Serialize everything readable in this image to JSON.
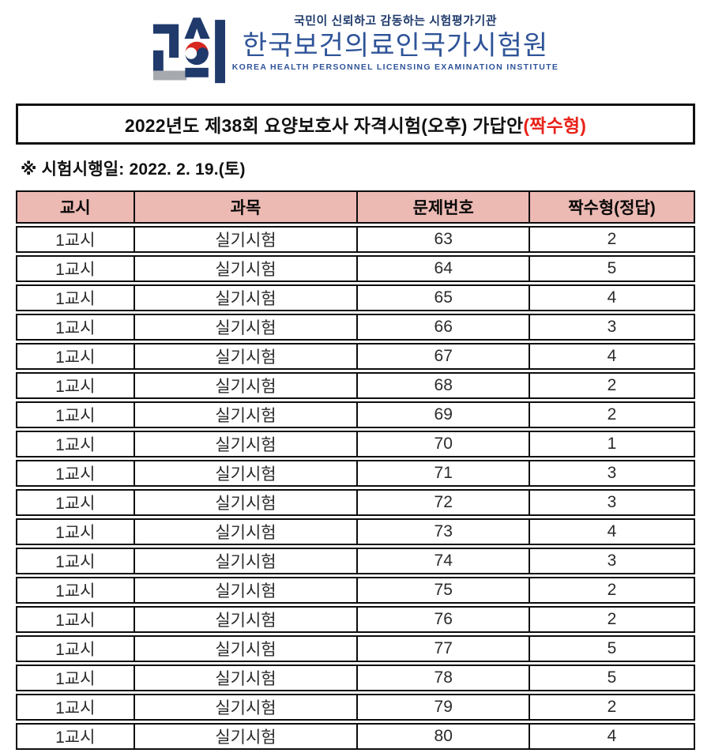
{
  "colors": {
    "navy": "#1f3a6b",
    "blue": "#2f5498",
    "logo_red": "#d7281f",
    "logo_gray": "#a6aaaf",
    "accent_red": "#e8231b",
    "header_pink": "#ecb9b3"
  },
  "logo": {
    "tagline": "국민이 신뢰하고 감동하는 시험평가기관",
    "org_name_ko": "한국보건의료인국가시험원",
    "org_name_en": "KOREA HEALTH PERSONNEL LICENSING EXAMINATION INSTITUTE"
  },
  "title": {
    "main": "2022년도 제38회 요양보호사 자격시험(오후) 가답안",
    "highlight": "(짝수형)"
  },
  "exam_date_note": "※ 시험시행일: 2022. 2. 19.(토)",
  "table": {
    "columns": [
      "교시",
      "과목",
      "문제번호",
      "짝수형(정답)"
    ],
    "rows": [
      {
        "session": "1교시",
        "subject": "실기시험",
        "question": "63",
        "answer": "2"
      },
      {
        "session": "1교시",
        "subject": "실기시험",
        "question": "64",
        "answer": "5"
      },
      {
        "session": "1교시",
        "subject": "실기시험",
        "question": "65",
        "answer": "4"
      },
      {
        "session": "1교시",
        "subject": "실기시험",
        "question": "66",
        "answer": "3"
      },
      {
        "session": "1교시",
        "subject": "실기시험",
        "question": "67",
        "answer": "4"
      },
      {
        "session": "1교시",
        "subject": "실기시험",
        "question": "68",
        "answer": "2"
      },
      {
        "session": "1교시",
        "subject": "실기시험",
        "question": "69",
        "answer": "2"
      },
      {
        "session": "1교시",
        "subject": "실기시험",
        "question": "70",
        "answer": "1"
      },
      {
        "session": "1교시",
        "subject": "실기시험",
        "question": "71",
        "answer": "3"
      },
      {
        "session": "1교시",
        "subject": "실기시험",
        "question": "72",
        "answer": "3"
      },
      {
        "session": "1교시",
        "subject": "실기시험",
        "question": "73",
        "answer": "4"
      },
      {
        "session": "1교시",
        "subject": "실기시험",
        "question": "74",
        "answer": "3"
      },
      {
        "session": "1교시",
        "subject": "실기시험",
        "question": "75",
        "answer": "2"
      },
      {
        "session": "1교시",
        "subject": "실기시험",
        "question": "76",
        "answer": "2"
      },
      {
        "session": "1교시",
        "subject": "실기시험",
        "question": "77",
        "answer": "5"
      },
      {
        "session": "1교시",
        "subject": "실기시험",
        "question": "78",
        "answer": "5"
      },
      {
        "session": "1교시",
        "subject": "실기시험",
        "question": "79",
        "answer": "2"
      },
      {
        "session": "1교시",
        "subject": "실기시험",
        "question": "80",
        "answer": "4"
      }
    ]
  }
}
